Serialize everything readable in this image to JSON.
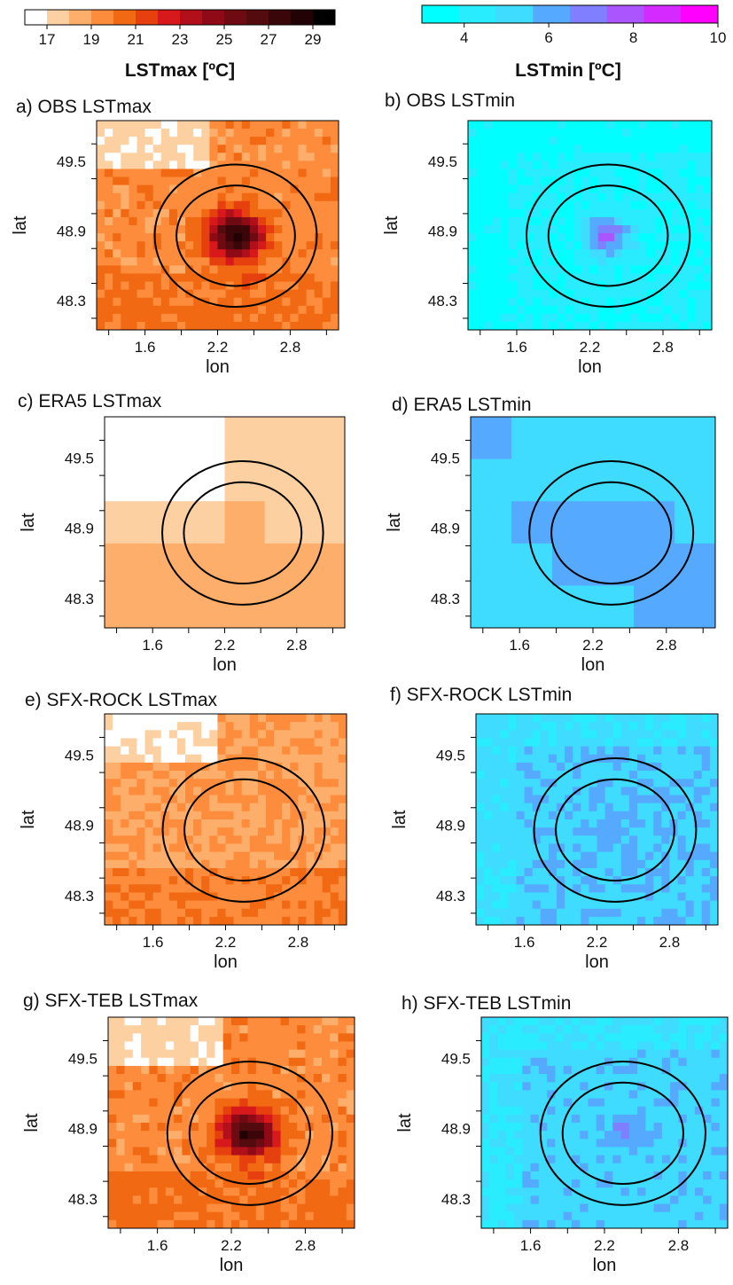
{
  "colorbars": {
    "max": {
      "label": "LSTmax [ºC]",
      "range": [
        16,
        30
      ],
      "ticks": [
        17,
        19,
        21,
        23,
        25,
        27,
        29
      ],
      "colors": [
        "#ffffff",
        "#fdd0a2",
        "#fdae6b",
        "#fd8d3c",
        "#f16913",
        "#e6400f",
        "#d7191c",
        "#b10f1a",
        "#8f0a17",
        "#6e0a12",
        "#540b0e",
        "#3b0609",
        "#220204",
        "#000000"
      ]
    },
    "min": {
      "label": "LSTmin [ºC]",
      "range": [
        3,
        10
      ],
      "ticks": [
        4,
        6,
        8,
        10
      ],
      "colors": [
        "#00ffff",
        "#29ecff",
        "#3fdcff",
        "#55aaff",
        "#7f7fff",
        "#aa55ff",
        "#d42aff",
        "#ff00ff"
      ]
    }
  },
  "axes": {
    "xlabel": "lon",
    "ylabel": "lat",
    "xticks": [
      "1.6",
      "2.2",
      "2.8"
    ],
    "yticks": [
      "49.5",
      "48.9",
      "48.3"
    ]
  },
  "chart_data": [
    {
      "type": "heatmap",
      "title": "a) OBS LSTmax",
      "variable": "LSTmax",
      "source": "OBS",
      "xlim": [
        1.2,
        3.2
      ],
      "ylim": [
        48.05,
        49.85
      ],
      "center": [
        2.35,
        48.86
      ],
      "background_C": 19.5,
      "peak_C": 28.5,
      "rings": 2
    },
    {
      "type": "heatmap",
      "title": "b) OBS LSTmin",
      "variable": "LSTmin",
      "source": "OBS",
      "xlim": [
        1.2,
        3.2
      ],
      "ylim": [
        48.05,
        49.85
      ],
      "center": [
        2.35,
        48.86
      ],
      "background_C": 4.0,
      "peak_C": 7.5,
      "rings": 2
    },
    {
      "type": "heatmap",
      "title": "c) ERA5 LSTmax",
      "variable": "LSTmax",
      "source": "ERA5",
      "xlim": [
        1.2,
        3.2
      ],
      "ylim": [
        48.05,
        49.85
      ],
      "center": [
        2.35,
        48.86
      ],
      "background_C": 18.5,
      "peak_C": 19.0,
      "rings": 2
    },
    {
      "type": "heatmap",
      "title": "d) ERA5 LSTmin",
      "variable": "LSTmin",
      "source": "ERA5",
      "xlim": [
        1.2,
        3.2
      ],
      "ylim": [
        48.05,
        49.85
      ],
      "center": [
        2.35,
        48.86
      ],
      "background_C": 5.5,
      "peak_C": 6.2,
      "rings": 2
    },
    {
      "type": "heatmap",
      "title": "e) SFX-ROCK LSTmax",
      "variable": "LSTmax",
      "source": "SFX-ROCK",
      "xlim": [
        1.2,
        3.2
      ],
      "ylim": [
        48.05,
        49.85
      ],
      "center": [
        2.35,
        48.86
      ],
      "background_C": 19.0,
      "peak_C": 19.8,
      "rings": 2
    },
    {
      "type": "heatmap",
      "title": "f) SFX-ROCK LSTmin",
      "variable": "LSTmin",
      "source": "SFX-ROCK",
      "xlim": [
        1.2,
        3.2
      ],
      "ylim": [
        48.05,
        49.85
      ],
      "center": [
        2.35,
        48.86
      ],
      "background_C": 5.5,
      "peak_C": 6.0,
      "rings": 2
    },
    {
      "type": "heatmap",
      "title": "g) SFX-TEB LSTmax",
      "variable": "LSTmax",
      "source": "SFX-TEB",
      "xlim": [
        1.2,
        3.2
      ],
      "ylim": [
        48.05,
        49.85
      ],
      "center": [
        2.35,
        48.86
      ],
      "background_C": 19.5,
      "peak_C": 28.0,
      "rings": 2
    },
    {
      "type": "heatmap",
      "title": "h) SFX-TEB LSTmin",
      "variable": "LSTmin",
      "source": "SFX-TEB",
      "xlim": [
        1.2,
        3.2
      ],
      "ylim": [
        48.05,
        49.85
      ],
      "center": [
        2.35,
        48.86
      ],
      "background_C": 5.3,
      "peak_C": 6.6,
      "rings": 2
    }
  ]
}
